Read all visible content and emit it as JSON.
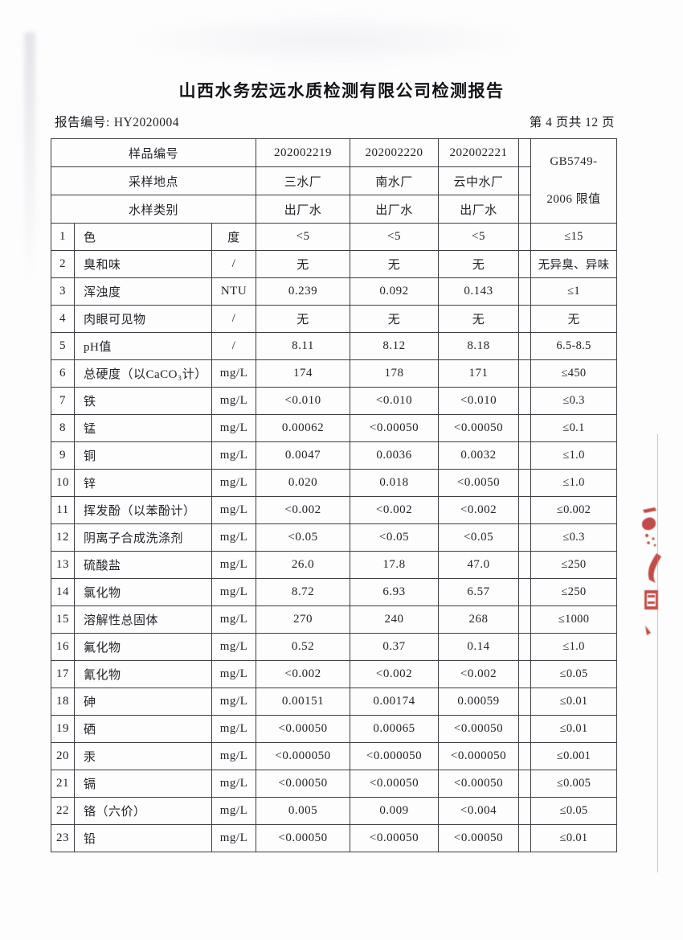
{
  "title": "山西水务宏远水质检测有限公司检测报告",
  "meta": {
    "report_no_label": "报告编号:",
    "report_no": "HY2020004",
    "page_info": "第 4 页共 12 页"
  },
  "table": {
    "header": {
      "sample_id_label": "样品编号",
      "sample_ids": [
        "202002219",
        "202002220",
        "202002221"
      ],
      "location_label": "采样地点",
      "locations": [
        "三水厂",
        "南水厂",
        "云中水厂"
      ],
      "type_label": "水样类别",
      "types": [
        "出厂水",
        "出厂水",
        "出厂水"
      ],
      "limit_header_line1": "GB5749-",
      "limit_header_line2": "2006 限值"
    },
    "rows": [
      {
        "no": "1",
        "name": "色",
        "unit": "度",
        "v1": "<5",
        "v2": "<5",
        "v3": "<5",
        "limit": "≤15"
      },
      {
        "no": "2",
        "name": "臭和味",
        "unit": "/",
        "v1": "无",
        "v2": "无",
        "v3": "无",
        "limit": "无异臭、异味"
      },
      {
        "no": "3",
        "name": "浑浊度",
        "unit": "NTU",
        "v1": "0.239",
        "v2": "0.092",
        "v3": "0.143",
        "limit": "≤1"
      },
      {
        "no": "4",
        "name": "肉眼可见物",
        "unit": "/",
        "v1": "无",
        "v2": "无",
        "v3": "无",
        "limit": "无"
      },
      {
        "no": "5",
        "name": "pH值",
        "unit": "/",
        "v1": "8.11",
        "v2": "8.12",
        "v3": "8.18",
        "limit": "6.5-8.5"
      },
      {
        "no": "6",
        "name": "总硬度（以CaCO₃计）",
        "unit": "mg/L",
        "v1": "174",
        "v2": "178",
        "v3": "171",
        "limit": "≤450"
      },
      {
        "no": "7",
        "name": "铁",
        "unit": "mg/L",
        "v1": "<0.010",
        "v2": "<0.010",
        "v3": "<0.010",
        "limit": "≤0.3"
      },
      {
        "no": "8",
        "name": "锰",
        "unit": "mg/L",
        "v1": "0.00062",
        "v2": "<0.00050",
        "v3": "<0.00050",
        "limit": "≤0.1"
      },
      {
        "no": "9",
        "name": "铜",
        "unit": "mg/L",
        "v1": "0.0047",
        "v2": "0.0036",
        "v3": "0.0032",
        "limit": "≤1.0"
      },
      {
        "no": "10",
        "name": "锌",
        "unit": "mg/L",
        "v1": "0.020",
        "v2": "0.018",
        "v3": "<0.0050",
        "limit": "≤1.0"
      },
      {
        "no": "11",
        "name": "挥发酚（以苯酚计）",
        "unit": "mg/L",
        "v1": "<0.002",
        "v2": "<0.002",
        "v3": "<0.002",
        "limit": "≤0.002"
      },
      {
        "no": "12",
        "name": "阴离子合成洗涤剂",
        "unit": "mg/L",
        "v1": "<0.05",
        "v2": "<0.05",
        "v3": "<0.05",
        "limit": "≤0.3"
      },
      {
        "no": "13",
        "name": "硫酸盐",
        "unit": "mg/L",
        "v1": "26.0",
        "v2": "17.8",
        "v3": "47.0",
        "limit": "≤250"
      },
      {
        "no": "14",
        "name": "氯化物",
        "unit": "mg/L",
        "v1": "8.72",
        "v2": "6.93",
        "v3": "6.57",
        "limit": "≤250"
      },
      {
        "no": "15",
        "name": "溶解性总固体",
        "unit": "mg/L",
        "v1": "270",
        "v2": "240",
        "v3": "268",
        "limit": "≤1000"
      },
      {
        "no": "16",
        "name": "氟化物",
        "unit": "mg/L",
        "v1": "0.52",
        "v2": "0.37",
        "v3": "0.14",
        "limit": "≤1.0"
      },
      {
        "no": "17",
        "name": "氰化物",
        "unit": "mg/L",
        "v1": "<0.002",
        "v2": "<0.002",
        "v3": "<0.002",
        "limit": "≤0.05"
      },
      {
        "no": "18",
        "name": "砷",
        "unit": "mg/L",
        "v1": "0.00151",
        "v2": "0.00174",
        "v3": "0.00059",
        "limit": "≤0.01"
      },
      {
        "no": "19",
        "name": "硒",
        "unit": "mg/L",
        "v1": "<0.00050",
        "v2": "0.00065",
        "v3": "<0.00050",
        "limit": "≤0.01"
      },
      {
        "no": "20",
        "name": "汞",
        "unit": "mg/L",
        "v1": "<0.000050",
        "v2": "<0.000050",
        "v3": "<0.000050",
        "limit": "≤0.001"
      },
      {
        "no": "21",
        "name": "镉",
        "unit": "mg/L",
        "v1": "<0.00050",
        "v2": "<0.00050",
        "v3": "<0.00050",
        "limit": "≤0.005"
      },
      {
        "no": "22",
        "name": "铬（六价）",
        "unit": "mg/L",
        "v1": "0.005",
        "v2": "0.009",
        "v3": "<0.004",
        "limit": "≤0.05"
      },
      {
        "no": "23",
        "name": "铅",
        "unit": "mg/L",
        "v1": "<0.00050",
        "v2": "<0.00050",
        "v3": "<0.00050",
        "limit": "≤0.01"
      }
    ]
  },
  "stamp": {
    "kind": "red-seal-fragment",
    "color": "#b5251f"
  },
  "colors": {
    "table_border": "#3d3d44",
    "text": "#222227",
    "stamp_red": "#b5251f"
  }
}
